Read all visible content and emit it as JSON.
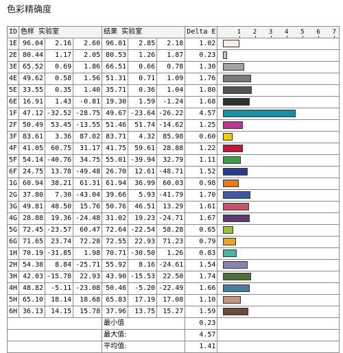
{
  "title": "色彩精确度",
  "header": {
    "id": "ID",
    "sample": "色样 实验室",
    "result": "结果 实验室",
    "delta": "Delta E",
    "scale": [
      "1",
      "2",
      "3",
      "4",
      "5",
      "6",
      "7"
    ]
  },
  "chart_data": {
    "type": "bar",
    "categories": [
      "1E",
      "2E",
      "3E",
      "4E",
      "5E",
      "6E",
      "1F",
      "2F",
      "3F",
      "4F",
      "5F",
      "6F",
      "1G",
      "2G",
      "3G",
      "4G",
      "5G",
      "6G",
      "1H",
      "2H",
      "3H",
      "4H",
      "5H",
      "6H"
    ],
    "values": [
      1.02,
      0.23,
      1.3,
      1.76,
      1.8,
      1.68,
      4.57,
      1.25,
      0.6,
      1.22,
      1.11,
      1.52,
      0.98,
      1.7,
      1.61,
      1.67,
      0.65,
      0.79,
      0.83,
      1.54,
      1.74,
      1.66,
      1.1,
      1.59
    ],
    "xlim": [
      0,
      7
    ],
    "ticks": [
      "1",
      "2",
      "3",
      "4",
      "5",
      "6",
      "7"
    ]
  },
  "rows": [
    {
      "id": "1E",
      "s": [
        "96.04",
        "2.16",
        "2.60"
      ],
      "r": [
        "96.01",
        "2.85",
        "2.18"
      ],
      "d": "1.02",
      "color": "#f6ede9"
    },
    {
      "id": "2E",
      "s": [
        "80.44",
        "1.17",
        "2.05"
      ],
      "r": [
        "80.53",
        "1.26",
        "1.87"
      ],
      "d": "0.23",
      "color": "#c6c3c2"
    },
    {
      "id": "3E",
      "s": [
        "65.52",
        "0.69",
        "1.86"
      ],
      "r": [
        "66.51",
        "0.66",
        "0.78"
      ],
      "d": "1.30",
      "color": "#a4a2a1"
    },
    {
      "id": "4E",
      "s": [
        "49.62",
        "0.58",
        "1.56"
      ],
      "r": [
        "51.31",
        "0.71",
        "1.09"
      ],
      "d": "1.76",
      "color": "#7c7b7a"
    },
    {
      "id": "5E",
      "s": [
        "33.55",
        "0.35",
        "1.40"
      ],
      "r": [
        "35.71",
        "0.36",
        "1.04"
      ],
      "d": "1.80",
      "color": "#545353"
    },
    {
      "id": "6E",
      "s": [
        "16.91",
        "1.43",
        "-0.81"
      ],
      "r": [
        "19.30",
        "1.59",
        "-1.24"
      ],
      "d": "1.68",
      "color": "#2f2f31"
    },
    {
      "id": "1F",
      "s": [
        "47.12",
        "-32.52",
        "-28.75"
      ],
      "r": [
        "49.67",
        "-23.64",
        "-26.22"
      ],
      "d": "4.57",
      "color": "#1d8fa5"
    },
    {
      "id": "2F",
      "s": [
        "50.49",
        "53.45",
        "-13.55"
      ],
      "r": [
        "51.46",
        "51.74",
        "-14.62"
      ],
      "d": "1.25",
      "color": "#bb3a93"
    },
    {
      "id": "3F",
      "s": [
        "83.61",
        "3.36",
        "87.02"
      ],
      "r": [
        "83.71",
        "4.32",
        "85.98"
      ],
      "d": "0.60",
      "color": "#f3cc00"
    },
    {
      "id": "4F",
      "s": [
        "41.05",
        "60.75",
        "31.17"
      ],
      "r": [
        "41.75",
        "59.61",
        "28.88"
      ],
      "d": "1.22",
      "color": "#bb1a3a"
    },
    {
      "id": "5F",
      "s": [
        "54.14",
        "-40.76",
        "34.75"
      ],
      "r": [
        "55.01",
        "-39.94",
        "32.79"
      ],
      "d": "1.11",
      "color": "#3d9c45"
    },
    {
      "id": "6F",
      "s": [
        "24.75",
        "13.78",
        "-49.48"
      ],
      "r": [
        "26.70",
        "12.61",
        "-48.71"
      ],
      "d": "1.52",
      "color": "#2b3c8e"
    },
    {
      "id": "1G",
      "s": [
        "60.94",
        "38.21",
        "61.31"
      ],
      "r": [
        "61.94",
        "36.99",
        "60.03"
      ],
      "d": "0.98",
      "color": "#e67a1f"
    },
    {
      "id": "2G",
      "s": [
        "37.80",
        "7.30",
        "-43.04"
      ],
      "r": [
        "39.66",
        "5.93",
        "-41.79"
      ],
      "d": "1.70",
      "color": "#3f58a3"
    },
    {
      "id": "3G",
      "s": [
        "49.81",
        "48.50",
        "15.76"
      ],
      "r": [
        "50.76",
        "46.51",
        "13.29"
      ],
      "d": "1.61",
      "color": "#c5546a"
    },
    {
      "id": "4G",
      "s": [
        "28.88",
        "19.36",
        "-24.48"
      ],
      "r": [
        "31.02",
        "19.23",
        "-24.71"
      ],
      "d": "1.67",
      "color": "#5c3c6e"
    },
    {
      "id": "5G",
      "s": [
        "72.45",
        "-23.57",
        "60.47"
      ],
      "r": [
        "72.64",
        "-22.54",
        "58.28"
      ],
      "d": "0.65",
      "color": "#a3bb3a"
    },
    {
      "id": "6G",
      "s": [
        "71.65",
        "23.74",
        "72.28"
      ],
      "r": [
        "72.55",
        "22.93",
        "71.23"
      ],
      "d": "0.79",
      "color": "#e9a12b"
    },
    {
      "id": "1H",
      "s": [
        "70.19",
        "-31.85",
        "1.98"
      ],
      "r": [
        "70.71",
        "-30.50",
        "1.26"
      ],
      "d": "0.83",
      "color": "#47b6a0"
    },
    {
      "id": "2H",
      "s": [
        "54.38",
        "8.84",
        "-25.71"
      ],
      "r": [
        "55.92",
        "8.16",
        "-24.61"
      ],
      "d": "1.54",
      "color": "#8584b5"
    },
    {
      "id": "3H",
      "s": [
        "42.03",
        "-15.78",
        "22.93"
      ],
      "r": [
        "43.90",
        "-15.53",
        "22.50"
      ],
      "d": "1.74",
      "color": "#4e6e3a"
    },
    {
      "id": "4H",
      "s": [
        "48.82",
        "-5.11",
        "-23.08"
      ],
      "r": [
        "50.46",
        "-5.20",
        "-22.49"
      ],
      "d": "1.66",
      "color": "#4a7e9e"
    },
    {
      "id": "5H",
      "s": [
        "65.10",
        "18.14",
        "18.68"
      ],
      "r": [
        "65.83",
        "17.19",
        "17.08"
      ],
      "d": "1.10",
      "color": "#c5957f"
    },
    {
      "id": "6H",
      "s": [
        "36.13",
        "14.15",
        "15.78"
      ],
      "r": [
        "37.96",
        "13.75",
        "15.27"
      ],
      "d": "1.59",
      "color": "#6c4a3b"
    }
  ],
  "summary": [
    {
      "label": "最小值",
      "value": "0.23"
    },
    {
      "label": "最大值:",
      "value": "4.57"
    },
    {
      "label": "平均值:",
      "value": "1.41"
    }
  ]
}
